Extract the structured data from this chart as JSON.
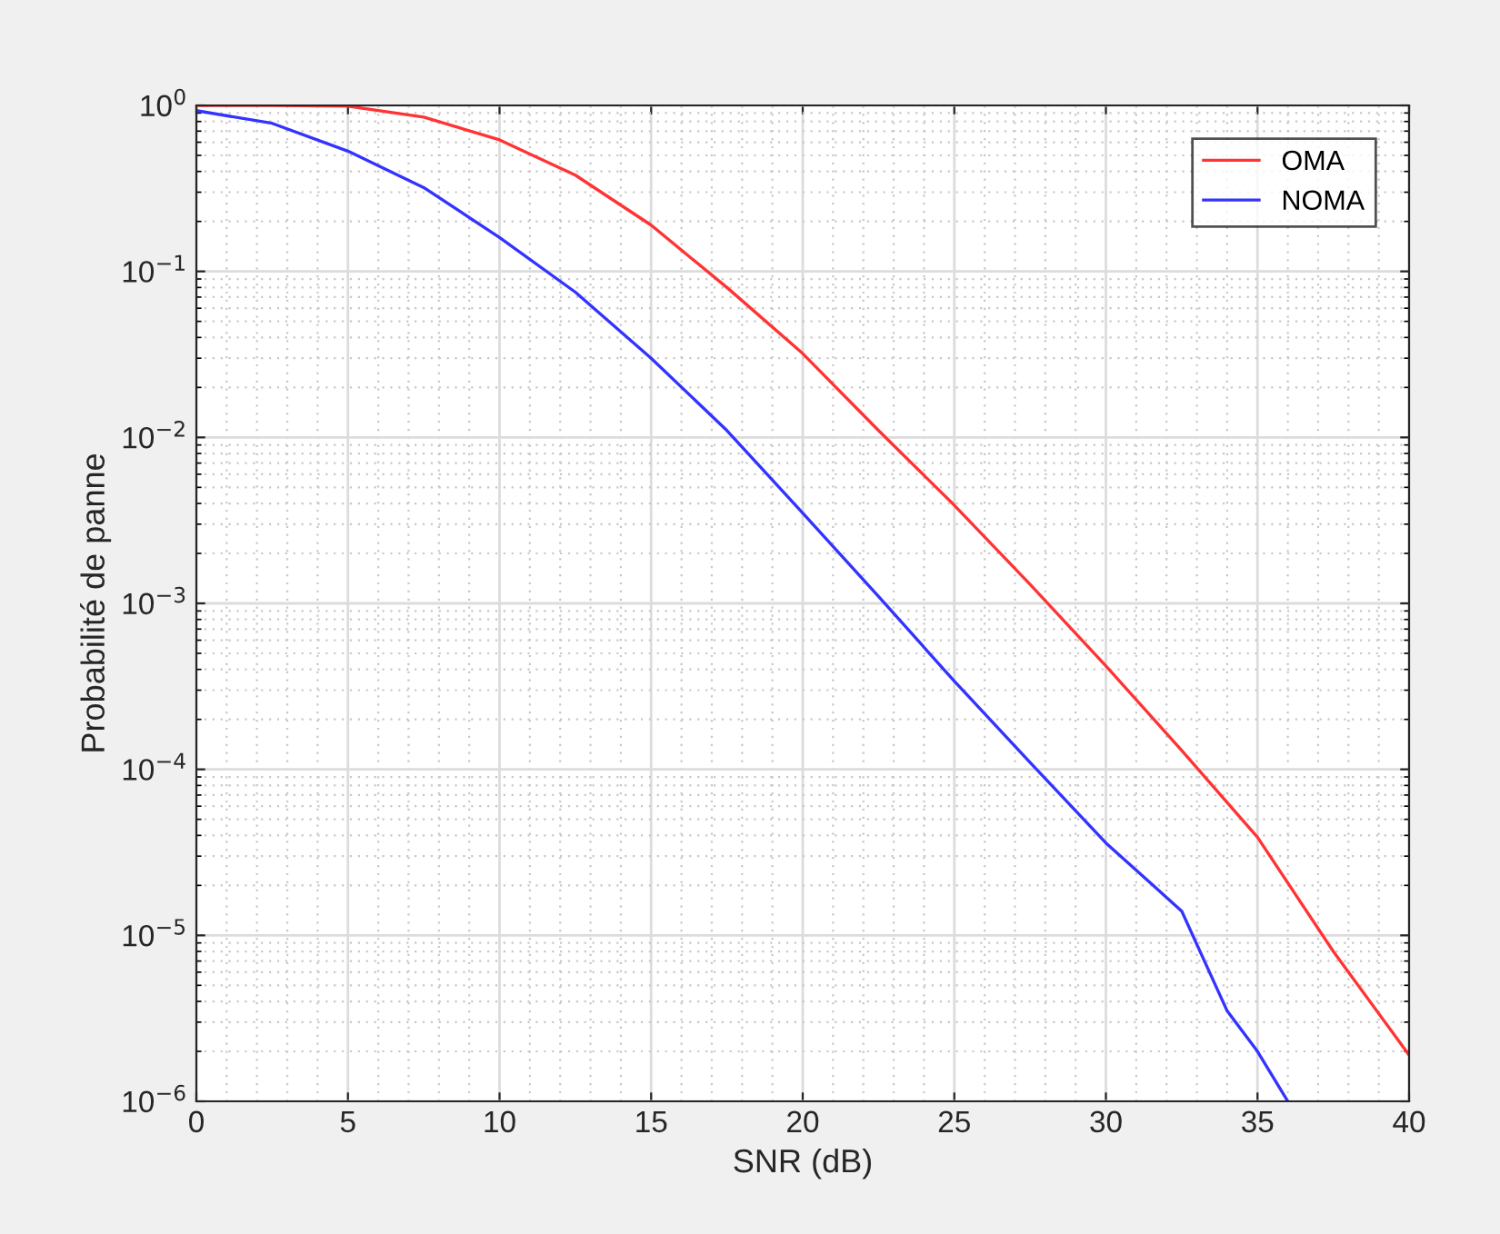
{
  "chart_data": {
    "type": "line",
    "xlabel": "SNR (dB)",
    "ylabel": "Probabilité de panne",
    "log": "y",
    "grid": true,
    "legend": "top right",
    "marker": "none",
    "line_style": "solid",
    "xlim": [
      0,
      40
    ],
    "xticks": [
      0,
      5,
      10,
      15,
      20,
      25,
      30,
      35,
      40
    ],
    "ylim": [
      1e-06,
      1
    ],
    "yticks": [
      {
        "value": 1e-06,
        "label": "10$^{−6}$"
      },
      {
        "value": 1e-05,
        "label": "10$^{−5}$"
      },
      {
        "value": 0.0001,
        "label": "10$^{−4}$"
      },
      {
        "value": 0.001,
        "label": "10$^{−3}$"
      },
      {
        "value": 0.01,
        "label": "10$^{−2}$"
      },
      {
        "value": 0.1,
        "label": "10$^{−1}$"
      },
      {
        "value": 1,
        "label": "10$^{0}$"
      }
    ],
    "series": [
      {
        "name": "OMA",
        "color": "#ff3333",
        "x": [
          0,
          2.5,
          5,
          7.5,
          10,
          12.5,
          15,
          17.5,
          20,
          22.5,
          25,
          27.5,
          30,
          32.5,
          35,
          37.5,
          40
        ],
        "values": [
          1.0,
          1.0,
          0.99,
          0.85,
          0.62,
          0.38,
          0.19,
          0.08,
          0.032,
          0.011,
          0.0039,
          0.0013,
          0.00042,
          0.00013,
          3.9e-05,
          8e-06,
          1.9e-06
        ]
      },
      {
        "name": "NOMA",
        "color": "#3333ff",
        "x": [
          0,
          2.5,
          5,
          7.5,
          10,
          12.5,
          15,
          17.5,
          20,
          22.5,
          25,
          27.5,
          30,
          32.5,
          34,
          35,
          36
        ],
        "values": [
          0.93,
          0.78,
          0.53,
          0.32,
          0.16,
          0.075,
          0.03,
          0.011,
          0.0035,
          0.0011,
          0.00034,
          0.00011,
          3.6e-05,
          1.4e-05,
          3.5e-06,
          2e-06,
          1e-06
        ]
      }
    ]
  }
}
